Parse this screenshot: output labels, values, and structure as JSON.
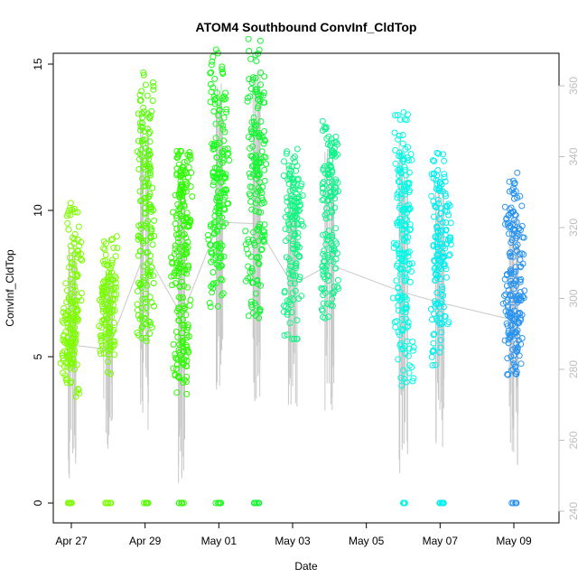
{
  "chart_data": {
    "type": "scatter",
    "title": "ATOM4 Southbound ConvInf_CldTop",
    "xlabel": "Date",
    "ylabel": "ConvInf_CldTop",
    "x_ticks": [
      {
        "date": "2018-04-27",
        "label": "Apr 27"
      },
      {
        "date": "2018-04-29",
        "label": "Apr 29"
      },
      {
        "date": "2018-05-01",
        "label": "May 01"
      },
      {
        "date": "2018-05-03",
        "label": "May 03"
      },
      {
        "date": "2018-05-05",
        "label": "May 05"
      },
      {
        "date": "2018-05-07",
        "label": "May 07"
      },
      {
        "date": "2018-05-09",
        "label": "May 09"
      }
    ],
    "xlim": [
      "2018-04-26",
      "2018-05-10"
    ],
    "ylim": [
      -0.5,
      15.5
    ],
    "y_ticks": [
      0,
      5,
      10,
      15
    ],
    "right_axis": {
      "ticks": [
        240,
        260,
        280,
        300,
        320,
        340,
        360
      ],
      "color": "#bdbdbd"
    },
    "grid": false,
    "series": [
      {
        "date": "2018-04-27",
        "color": "#7ffc00",
        "zero_pts": true,
        "cluster": [
          [
            -0.05,
            6.5
          ],
          [
            0.05,
            9.2
          ],
          [
            -0.1,
            5.2
          ],
          [
            0.1,
            8.0
          ],
          [
            0.0,
            7.2
          ],
          [
            0.0,
            5.8
          ],
          [
            0.05,
            4.6
          ],
          [
            -0.05,
            6.0
          ]
        ]
      },
      {
        "date": "2018-04-28",
        "color": "#78fd00",
        "zero_pts": true,
        "cluster": [
          [
            -0.05,
            7.0
          ],
          [
            0.05,
            8.1
          ],
          [
            0.0,
            6.3
          ],
          [
            0.0,
            5.4
          ],
          [
            0.05,
            7.5
          ],
          [
            -0.05,
            6.0
          ]
        ]
      },
      {
        "date": "2018-04-29",
        "color": "#55fd00",
        "zero_pts": true,
        "cluster": [
          [
            -0.05,
            12.5
          ],
          [
            0.05,
            13.7
          ],
          [
            0.0,
            10.5
          ],
          [
            0.0,
            8.5
          ],
          [
            0.05,
            7.0
          ],
          [
            -0.05,
            6.5
          ],
          [
            0.0,
            11.5
          ],
          [
            0.05,
            9.5
          ]
        ]
      },
      {
        "date": "2018-04-30",
        "color": "#2efa00",
        "zero_pts": true,
        "cluster": [
          [
            -0.05,
            11.0
          ],
          [
            0.05,
            10.0
          ],
          [
            0.0,
            9.0
          ],
          [
            0.0,
            7.5
          ],
          [
            0.05,
            6.0
          ],
          [
            -0.05,
            4.6
          ],
          [
            0.1,
            10.5
          ],
          [
            -0.1,
            8.2
          ],
          [
            0.0,
            5.3
          ],
          [
            0.05,
            11.2
          ]
        ]
      },
      {
        "date": "2018-05-01",
        "color": "#1afc1a",
        "zero_pts": true,
        "cluster": [
          [
            -0.05,
            14.4
          ],
          [
            0.05,
            13.0
          ],
          [
            0.0,
            12.0
          ],
          [
            0.0,
            10.5
          ],
          [
            0.05,
            9.5
          ],
          [
            -0.05,
            7.8
          ],
          [
            0.1,
            11.0
          ],
          [
            -0.1,
            8.5
          ]
        ]
      },
      {
        "date": "2018-05-02",
        "color": "#12f532",
        "zero_pts": true,
        "cluster": [
          [
            -0.05,
            14.8
          ],
          [
            0.05,
            13.5
          ],
          [
            0.0,
            12.0
          ],
          [
            0.0,
            10.8
          ],
          [
            0.05,
            9.5
          ],
          [
            -0.05,
            7.3
          ],
          [
            0.1,
            11.5
          ],
          [
            -0.1,
            8.4
          ]
        ]
      },
      {
        "date": "2018-05-03",
        "color": "#12f582",
        "zero_pts": false,
        "cluster": [
          [
            -0.05,
            11.2
          ],
          [
            0.05,
            10.5
          ],
          [
            0.0,
            9.5
          ],
          [
            0.0,
            8.5
          ],
          [
            0.05,
            7.8
          ],
          [
            -0.05,
            6.7
          ],
          [
            0.1,
            10.0
          ]
        ]
      },
      {
        "date": "2018-05-04",
        "color": "#12f28c",
        "zero_pts": false,
        "cluster": [
          [
            -0.05,
            12.2
          ],
          [
            0.05,
            11.0
          ],
          [
            0.0,
            10.0
          ],
          [
            0.0,
            9.0
          ],
          [
            0.05,
            8.0
          ],
          [
            -0.05,
            7.1
          ],
          [
            0.1,
            11.5
          ]
        ]
      },
      {
        "date": "2018-05-06",
        "color": "#00fae6",
        "zero_pts": true,
        "cluster": [
          [
            -0.05,
            12.4
          ],
          [
            0.05,
            11.0
          ],
          [
            0.0,
            10.5
          ],
          [
            0.0,
            9.0
          ],
          [
            0.05,
            7.5
          ],
          [
            -0.05,
            6.0
          ],
          [
            0.1,
            5.0
          ],
          [
            -0.1,
            8.0
          ],
          [
            0.0,
            10.0
          ]
        ]
      },
      {
        "date": "2018-05-07",
        "color": "#00eeee",
        "zero_pts": true,
        "cluster": [
          [
            -0.05,
            10.9
          ],
          [
            0.05,
            10.0
          ],
          [
            0.0,
            9.0
          ],
          [
            0.0,
            8.0
          ],
          [
            0.05,
            7.0
          ],
          [
            -0.05,
            5.8
          ],
          [
            0.1,
            9.5
          ]
        ]
      },
      {
        "date": "2018-05-09",
        "color": "#2994f0",
        "zero_pts": true,
        "cluster": [
          [
            -0.05,
            10.3
          ],
          [
            0.05,
            9.5
          ],
          [
            0.0,
            8.5
          ],
          [
            0.0,
            7.5
          ],
          [
            0.05,
            6.5
          ],
          [
            -0.05,
            5.2
          ],
          [
            0.1,
            8.0
          ],
          [
            -0.1,
            6.8
          ],
          [
            0.05,
            5.6
          ]
        ]
      }
    ]
  }
}
